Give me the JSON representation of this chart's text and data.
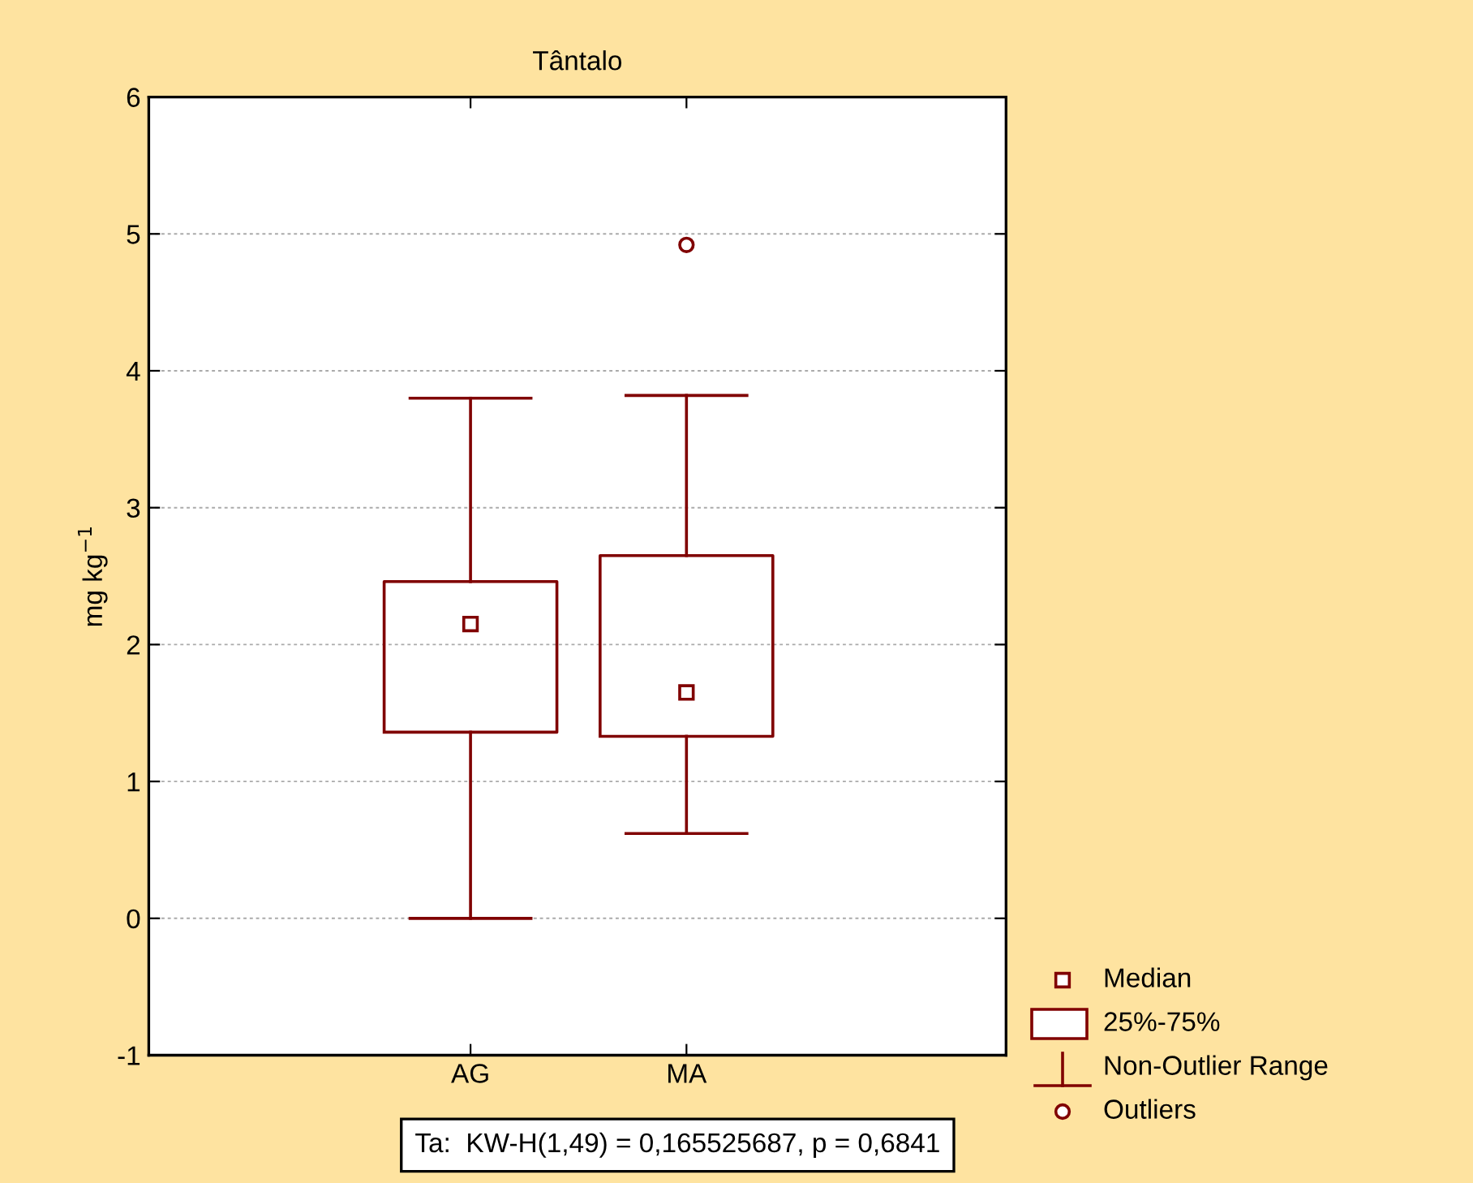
{
  "chart_data": {
    "type": "box",
    "title": "Tântalo",
    "ylabel": "mg kg$^{−1}$",
    "categories": [
      "AG",
      "MA"
    ],
    "color": "#800000",
    "boxes": [
      {
        "low": 0,
        "q1": 1.36,
        "median": 2.15,
        "q3": 2.46,
        "high": 3.8
      },
      {
        "low": 0.62,
        "q1": 1.33,
        "median": 1.65,
        "q3": 2.65,
        "high": 3.82,
        "outliers": [
          4.92
        ]
      }
    ],
    "ylim": [
      -1,
      6
    ],
    "yticks": [
      -1,
      0,
      1,
      2,
      3,
      4,
      5,
      6
    ],
    "grid": "y",
    "marker": "square",
    "annotations": [
      "Median",
      "25%-75%",
      "Non-Outlier Range",
      "Outliers",
      "Ta:  KW-H(1,49) = 0,165525687, p = 0,6841"
    ]
  }
}
